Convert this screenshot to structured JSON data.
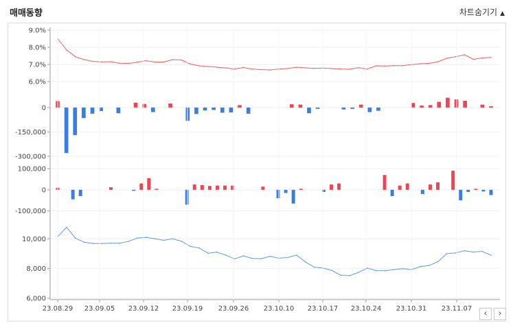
{
  "header": {
    "title": "매매동향",
    "toggle_label": "차트숨기기",
    "toggle_icon": "triangle-up-icon"
  },
  "nav": {
    "prev_icon": "chevron-left-icon",
    "next_icon": "chevron-right-icon",
    "prev_label": "‹",
    "next_label": "›"
  },
  "chart_data": [
    {
      "type": "line",
      "color": "#f25b5b",
      "ylim": [
        5.0,
        9.0
      ],
      "yticks": [
        9,
        8,
        7,
        6
      ],
      "ytick_labels": [
        "9.0%",
        "8.0%",
        "7.0%",
        "6.0%"
      ],
      "values": [
        8.5,
        7.85,
        7.45,
        7.28,
        7.18,
        7.15,
        7.16,
        7.07,
        7.06,
        7.13,
        7.22,
        7.14,
        7.14,
        7.28,
        7.26,
        7.02,
        6.92,
        6.88,
        6.84,
        6.8,
        6.73,
        6.82,
        6.73,
        6.7,
        6.68,
        6.73,
        6.76,
        6.84,
        6.8,
        6.77,
        6.79,
        6.76,
        6.73,
        6.72,
        6.81,
        6.73,
        6.92,
        6.91,
        6.93,
        6.93,
        6.99,
        7.04,
        7.06,
        7.16,
        7.36,
        7.45,
        7.57,
        7.3,
        7.38,
        7.41
      ]
    },
    {
      "type": "bar",
      "colors": {
        "positive": "#ef4452",
        "negative": "#3a7fe0"
      },
      "ylim": [
        -300000,
        50000
      ],
      "yticks": [
        0,
        -150000,
        -300000
      ],
      "ytick_labels": [
        "0",
        "-150,000",
        "-300,000"
      ],
      "values": [
        40000,
        -280000,
        -170000,
        -65000,
        -38000,
        -22000,
        0,
        -35000,
        0,
        30000,
        22000,
        -28000,
        0,
        25000,
        0,
        -82000,
        -40000,
        -18000,
        -15000,
        -32000,
        -30000,
        15000,
        -38000,
        0,
        0,
        0,
        0,
        20000,
        18000,
        -35000,
        -8000,
        0,
        0,
        -12000,
        -8000,
        18000,
        -28000,
        -20000,
        0,
        0,
        0,
        28000,
        12000,
        15000,
        35000,
        60000,
        50000,
        42000,
        0,
        18000,
        8000
      ]
    },
    {
      "type": "bar",
      "colors": {
        "positive": "#ef4452",
        "negative": "#3a7fe0"
      },
      "ylim": [
        -130000,
        155000
      ],
      "yticks": [
        100000,
        0,
        -100000
      ],
      "ytick_labels": [
        "100,000",
        "0",
        "-100,000"
      ],
      "values": [
        10000,
        0,
        -45000,
        -30000,
        0,
        0,
        0,
        12000,
        0,
        0,
        -5000,
        30000,
        55000,
        5000,
        0,
        0,
        0,
        -70000,
        25000,
        22000,
        18000,
        20000,
        20000,
        20000,
        0,
        0,
        0,
        15000,
        0,
        -40000,
        -15000,
        -65000,
        5000,
        0,
        0,
        -10000,
        25000,
        30000,
        0,
        0,
        0,
        0,
        0,
        70000,
        -30000,
        20000,
        30000,
        0,
        -20000,
        25000,
        35000,
        0,
        90000,
        -50000,
        -10000,
        5000,
        -8000,
        -25000
      ]
    },
    {
      "type": "line",
      "color": "#5b9be0",
      "ylim": [
        6000,
        11400
      ],
      "yticks": [
        10000,
        8000,
        6000
      ],
      "ytick_labels": [
        "10,000",
        "8,000",
        "6,000"
      ],
      "values": [
        10150,
        10770,
        10050,
        9770,
        9680,
        9680,
        9700,
        9700,
        9820,
        10050,
        10100,
        10000,
        9900,
        10000,
        9830,
        9490,
        9380,
        9030,
        9100,
        8900,
        8650,
        8850,
        8680,
        8660,
        8820,
        8700,
        8740,
        8900,
        8450,
        8090,
        8030,
        7870,
        7550,
        7520,
        7730,
        8030,
        7860,
        7860,
        7920,
        7990,
        7920,
        8130,
        8200,
        8460,
        9000,
        9050,
        9200,
        9100,
        9150,
        8900
      ]
    }
  ],
  "x_axis": {
    "tick_labels": [
      "23.08.29",
      "23.09.05",
      "23.09.12",
      "23.09.19",
      "23.09.26",
      "23.10.10",
      "23.10.17",
      "23.10.24",
      "23.10.31",
      "23.11.07"
    ]
  }
}
